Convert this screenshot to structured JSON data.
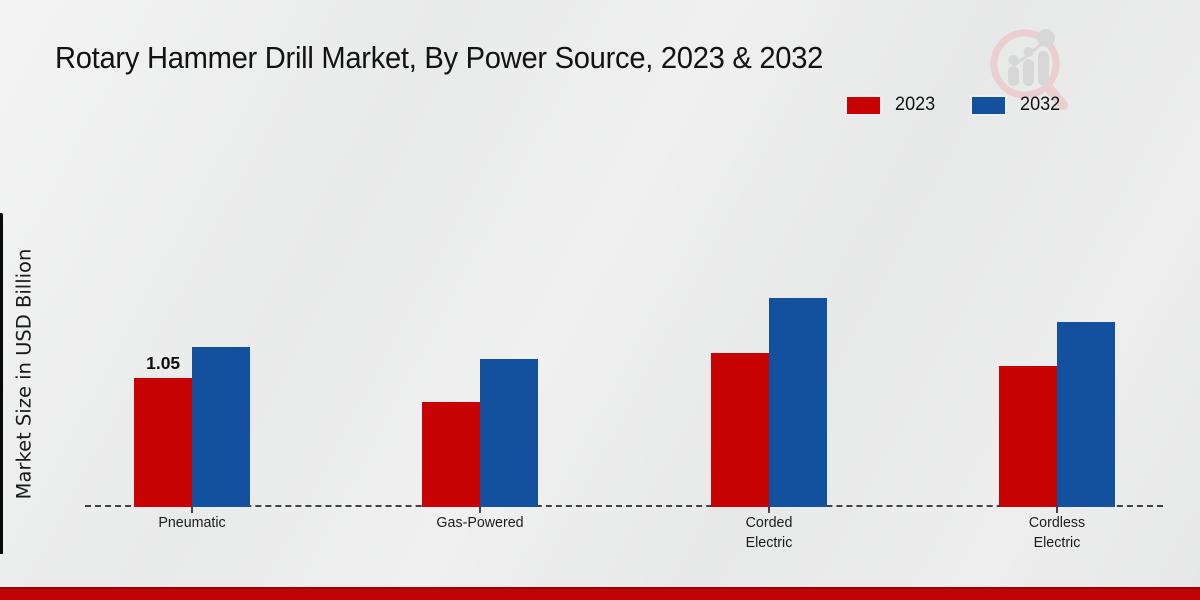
{
  "chart_data": {
    "type": "bar",
    "title": "Rotary Hammer Drill Market, By Power Source, 2023 & 2032",
    "ylabel": "Market Size in USD Billion",
    "categories": [
      "Pneumatic",
      "Gas-Powered",
      "Corded Electric",
      "Cordless Electric"
    ],
    "series": [
      {
        "name": "2023",
        "color": "#c80303",
        "values": [
          1.05,
          0.85,
          1.25,
          1.15
        ]
      },
      {
        "name": "2032",
        "color": "#13509e",
        "values": [
          1.3,
          1.2,
          1.7,
          1.5
        ]
      }
    ],
    "value_labels": [
      {
        "category_index": 0,
        "series_index": 0,
        "text": "1.05"
      }
    ],
    "ylim": [
      0,
      2
    ],
    "grid": false,
    "baseline_style": "dashed",
    "legend_position": "top-right"
  },
  "branding": {
    "watermark_icon": "magnifier-bar-chart-logo",
    "footer_band_color": "#c00404"
  }
}
